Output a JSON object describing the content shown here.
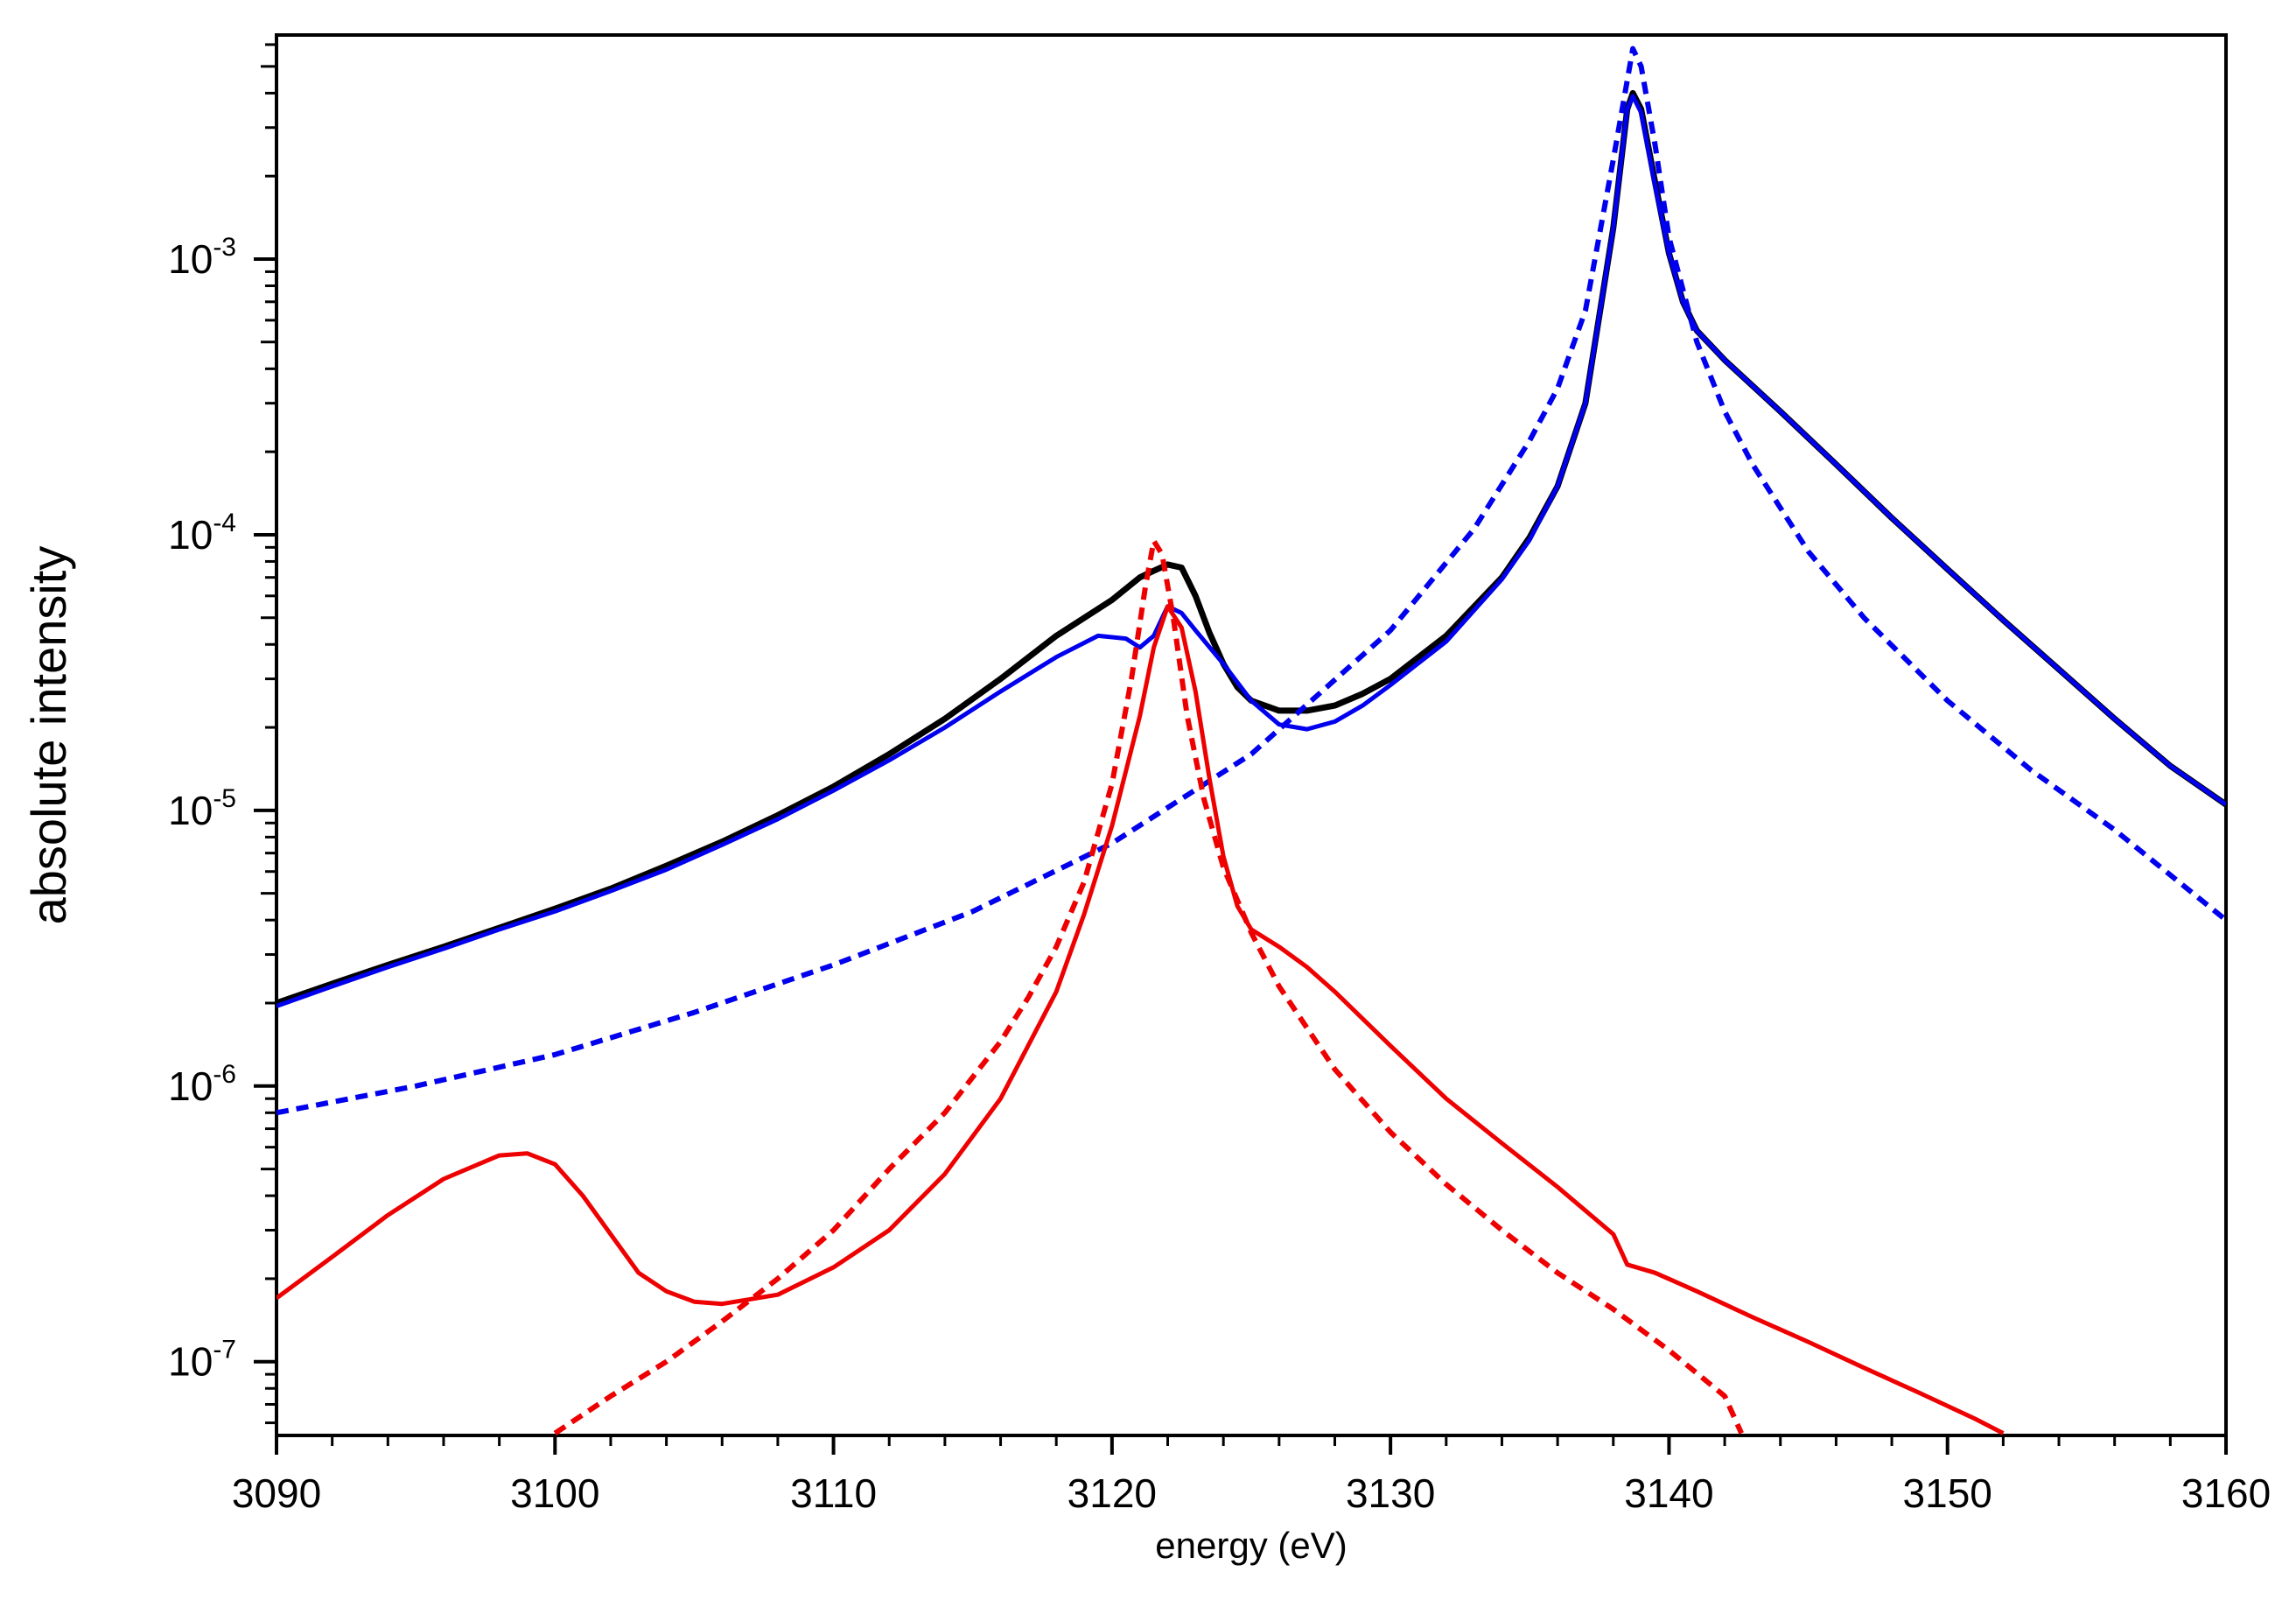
{
  "chart_data": {
    "type": "line",
    "title": "",
    "xlabel": "energy (eV)",
    "ylabel": "absolute intensity",
    "xlim": [
      3090,
      3160
    ],
    "ylim": [
      5.4e-08,
      0.0065
    ],
    "yscale": "log",
    "grid": false,
    "legend": "none",
    "x_ticks": [
      3090,
      3100,
      3110,
      3120,
      3130,
      3140,
      3150,
      3160
    ],
    "y_ticks": [
      {
        "value": 1e-07,
        "base": "10",
        "exp": "-7"
      },
      {
        "value": 1e-06,
        "base": "10",
        "exp": "-6"
      },
      {
        "value": 1e-05,
        "base": "10",
        "exp": "-5"
      },
      {
        "value": 0.0001,
        "base": "10",
        "exp": "-4"
      },
      {
        "value": 0.001,
        "base": "10",
        "exp": "-3"
      }
    ],
    "series": [
      {
        "color": "#000000",
        "dash": "solid",
        "width": 7,
        "points": [
          [
            3090,
            2e-06
          ],
          [
            3092,
            2.35e-06
          ],
          [
            3094,
            2.75e-06
          ],
          [
            3096,
            3.2e-06
          ],
          [
            3098,
            3.75e-06
          ],
          [
            3100,
            4.4e-06
          ],
          [
            3102,
            5.2e-06
          ],
          [
            3104,
            6.3e-06
          ],
          [
            3106,
            7.7e-06
          ],
          [
            3108,
            9.6e-06
          ],
          [
            3110,
            1.22e-05
          ],
          [
            3112,
            1.6e-05
          ],
          [
            3114,
            2.15e-05
          ],
          [
            3116,
            3e-05
          ],
          [
            3118,
            4.3e-05
          ],
          [
            3120,
            5.8e-05
          ],
          [
            3121,
            7e-05
          ],
          [
            3121.5,
            7.4e-05
          ],
          [
            3122,
            7.8e-05
          ],
          [
            3122.5,
            7.6e-05
          ],
          [
            3123,
            6e-05
          ],
          [
            3123.5,
            4.4e-05
          ],
          [
            3124,
            3.4e-05
          ],
          [
            3124.5,
            2.8e-05
          ],
          [
            3125,
            2.5e-05
          ],
          [
            3126,
            2.3e-05
          ],
          [
            3127,
            2.3e-05
          ],
          [
            3128,
            2.4e-05
          ],
          [
            3129,
            2.65e-05
          ],
          [
            3130,
            3e-05
          ],
          [
            3132,
            4.3e-05
          ],
          [
            3134,
            7e-05
          ],
          [
            3135,
            9.8e-05
          ],
          [
            3136,
            0.00015
          ],
          [
            3137,
            0.0003
          ],
          [
            3138,
            0.0013
          ],
          [
            3138.5,
            0.0035
          ],
          [
            3138.7,
            0.004
          ],
          [
            3139,
            0.0035
          ],
          [
            3139.5,
            0.0019
          ],
          [
            3140,
            0.00105
          ],
          [
            3140.5,
            0.0007
          ],
          [
            3141,
            0.00055
          ],
          [
            3142,
            0.00043
          ],
          [
            3144,
            0.00028
          ],
          [
            3146,
            0.00018
          ],
          [
            3148,
            0.000115
          ],
          [
            3150,
            7.5e-05
          ],
          [
            3152,
            4.9e-05
          ],
          [
            3154,
            3.25e-05
          ],
          [
            3156,
            2.15e-05
          ],
          [
            3158,
            1.45e-05
          ],
          [
            3160,
            1.05e-05
          ]
        ]
      },
      {
        "color": "#0000ee",
        "dash": "solid",
        "width": 5,
        "points": [
          [
            3090,
            1.95e-06
          ],
          [
            3092,
            2.3e-06
          ],
          [
            3094,
            2.7e-06
          ],
          [
            3096,
            3.15e-06
          ],
          [
            3098,
            3.7e-06
          ],
          [
            3100,
            4.3e-06
          ],
          [
            3102,
            5.1e-06
          ],
          [
            3104,
            6.1e-06
          ],
          [
            3106,
            7.5e-06
          ],
          [
            3108,
            9.3e-06
          ],
          [
            3110,
            1.18e-05
          ],
          [
            3112,
            1.52e-05
          ],
          [
            3114,
            2e-05
          ],
          [
            3116,
            2.7e-05
          ],
          [
            3118,
            3.6e-05
          ],
          [
            3119.5,
            4.3e-05
          ],
          [
            3120.5,
            4.2e-05
          ],
          [
            3121,
            3.9e-05
          ],
          [
            3121.5,
            4.3e-05
          ],
          [
            3122,
            5.5e-05
          ],
          [
            3122.5,
            5.2e-05
          ],
          [
            3123,
            4.5e-05
          ],
          [
            3124,
            3.4e-05
          ],
          [
            3125,
            2.5e-05
          ],
          [
            3126,
            2.05e-05
          ],
          [
            3127,
            1.97e-05
          ],
          [
            3128,
            2.1e-05
          ],
          [
            3129,
            2.4e-05
          ],
          [
            3130,
            2.85e-05
          ],
          [
            3132,
            4.1e-05
          ],
          [
            3134,
            6.9e-05
          ],
          [
            3135,
            9.6e-05
          ],
          [
            3136,
            0.00015
          ],
          [
            3137,
            0.0003
          ],
          [
            3138,
            0.0013
          ],
          [
            3138.5,
            0.0035
          ],
          [
            3138.7,
            0.0039
          ],
          [
            3139,
            0.0034
          ],
          [
            3139.5,
            0.00185
          ],
          [
            3140,
            0.00105
          ],
          [
            3140.5,
            0.0007
          ],
          [
            3141,
            0.00055
          ],
          [
            3142,
            0.00043
          ],
          [
            3144,
            0.00028
          ],
          [
            3146,
            0.00018
          ],
          [
            3148,
            0.000115
          ],
          [
            3150,
            7.5e-05
          ],
          [
            3152,
            4.9e-05
          ],
          [
            3154,
            3.25e-05
          ],
          [
            3156,
            2.15e-05
          ],
          [
            3158,
            1.45e-05
          ],
          [
            3160,
            1.05e-05
          ]
        ]
      },
      {
        "color": "#0000ee",
        "dash": "dashed",
        "width": 6,
        "points": [
          [
            3090,
            8e-07
          ],
          [
            3095,
            1e-06
          ],
          [
            3100,
            1.3e-06
          ],
          [
            3105,
            1.85e-06
          ],
          [
            3110,
            2.75e-06
          ],
          [
            3115,
            4.3e-06
          ],
          [
            3120,
            7.6e-06
          ],
          [
            3125,
            1.6e-05
          ],
          [
            3130,
            4.5e-05
          ],
          [
            3133,
            0.000105
          ],
          [
            3135,
            0.00022
          ],
          [
            3136,
            0.00034
          ],
          [
            3137,
            0.00065
          ],
          [
            3138,
            0.0023
          ],
          [
            3138.7,
            0.0058
          ],
          [
            3139,
            0.005
          ],
          [
            3139.5,
            0.0026
          ],
          [
            3140,
            0.0012
          ],
          [
            3141,
            0.0005
          ],
          [
            3142,
            0.00028
          ],
          [
            3143,
            0.00018
          ],
          [
            3145,
            8.7e-05
          ],
          [
            3147,
            5e-05
          ],
          [
            3150,
            2.5e-05
          ],
          [
            3153,
            1.4e-05
          ],
          [
            3156,
            8.5e-06
          ],
          [
            3160,
            4e-06
          ]
        ]
      },
      {
        "color": "#ee0000",
        "dash": "solid",
        "width": 5,
        "points": [
          [
            3090,
            1.7e-07
          ],
          [
            3092,
            2.4e-07
          ],
          [
            3094,
            3.4e-07
          ],
          [
            3096,
            4.6e-07
          ],
          [
            3098,
            5.6e-07
          ],
          [
            3099,
            5.7e-07
          ],
          [
            3100,
            5.2e-07
          ],
          [
            3101,
            4e-07
          ],
          [
            3102,
            2.9e-07
          ],
          [
            3103,
            2.1e-07
          ],
          [
            3104,
            1.8e-07
          ],
          [
            3105,
            1.65e-07
          ],
          [
            3106,
            1.62e-07
          ],
          [
            3108,
            1.75e-07
          ],
          [
            3110,
            2.2e-07
          ],
          [
            3112,
            3e-07
          ],
          [
            3114,
            4.8e-07
          ],
          [
            3116,
            9e-07
          ],
          [
            3118,
            2.2e-06
          ],
          [
            3119,
            4.2e-06
          ],
          [
            3120,
            8.8e-06
          ],
          [
            3121,
            2.2e-05
          ],
          [
            3121.5,
            3.9e-05
          ],
          [
            3122,
            5.5e-05
          ],
          [
            3122.5,
            4.6e-05
          ],
          [
            3123,
            2.7e-05
          ],
          [
            3123.5,
            1.3e-05
          ],
          [
            3124,
            6.8e-06
          ],
          [
            3124.5,
            4.5e-06
          ],
          [
            3125,
            3.7e-06
          ],
          [
            3126,
            3.2e-06
          ],
          [
            3127,
            2.7e-06
          ],
          [
            3128,
            2.2e-06
          ],
          [
            3130,
            1.4e-06
          ],
          [
            3132,
            9e-07
          ],
          [
            3134,
            6.2e-07
          ],
          [
            3136,
            4.3e-07
          ],
          [
            3138,
            2.9e-07
          ],
          [
            3138.5,
            2.25e-07
          ],
          [
            3139.5,
            2.1e-07
          ],
          [
            3141,
            1.8e-07
          ],
          [
            3143,
            1.45e-07
          ],
          [
            3145,
            1.18e-07
          ],
          [
            3147,
            9.5e-08
          ],
          [
            3149,
            7.7e-08
          ],
          [
            3151,
            6.2e-08
          ],
          [
            3152,
            5.5e-08
          ]
        ]
      },
      {
        "color": "#ee0000",
        "dash": "dashed",
        "width": 6,
        "points": [
          [
            3100,
            5.5e-08
          ],
          [
            3102,
            7.5e-08
          ],
          [
            3104,
            1e-07
          ],
          [
            3106,
            1.4e-07
          ],
          [
            3108,
            2e-07
          ],
          [
            3110,
            3e-07
          ],
          [
            3112,
            5e-07
          ],
          [
            3114,
            8e-07
          ],
          [
            3116,
            1.45e-06
          ],
          [
            3117,
            2.1e-06
          ],
          [
            3118,
            3.2e-06
          ],
          [
            3119,
            5.5e-06
          ],
          [
            3120,
            1.25e-05
          ],
          [
            3120.7,
            3e-05
          ],
          [
            3121.2,
            6.5e-05
          ],
          [
            3121.5,
            9.5e-05
          ],
          [
            3121.8,
            8.5e-05
          ],
          [
            3122.2,
            5e-05
          ],
          [
            3122.7,
            2.2e-05
          ],
          [
            3123.3,
            1.1e-05
          ],
          [
            3124,
            6.2e-06
          ],
          [
            3125,
            3.6e-06
          ],
          [
            3126,
            2.3e-06
          ],
          [
            3128,
            1.15e-06
          ],
          [
            3130,
            6.8e-07
          ],
          [
            3132,
            4.4e-07
          ],
          [
            3134,
            3e-07
          ],
          [
            3136,
            2.1e-07
          ],
          [
            3138,
            1.55e-07
          ],
          [
            3140,
            1.1e-07
          ],
          [
            3142,
            7.5e-08
          ],
          [
            3142.6,
            5.5e-08
          ]
        ]
      }
    ]
  }
}
